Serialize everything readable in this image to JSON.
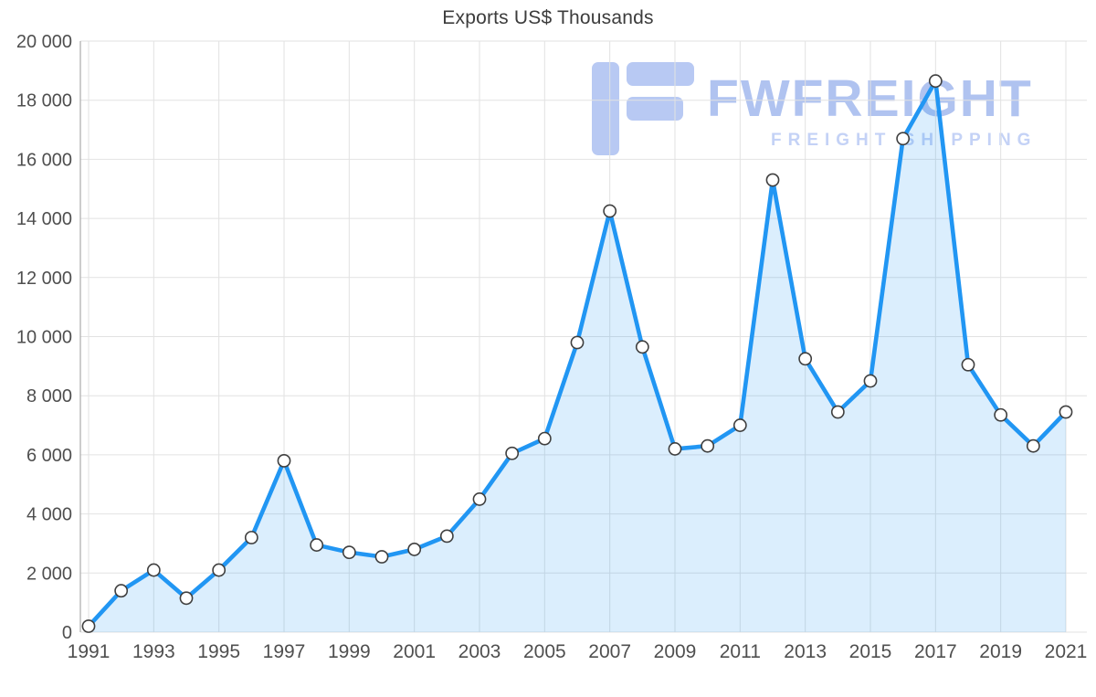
{
  "watermark": {
    "brand": "FWFREIGHT",
    "tagline": "FREIGHT SHIPPING",
    "brand_color": "#b0c3f0",
    "logo_color": "#b8c9f3"
  },
  "chart_data": {
    "type": "area",
    "title": "Exports US$ Thousands",
    "xlabel": "",
    "ylabel": "",
    "ylim": [
      0,
      20000
    ],
    "grid": true,
    "legend": "none",
    "x": [
      1991,
      1992,
      1993,
      1994,
      1995,
      1996,
      1997,
      1998,
      1999,
      2000,
      2001,
      2002,
      2003,
      2004,
      2005,
      2006,
      2007,
      2008,
      2009,
      2010,
      2011,
      2012,
      2013,
      2014,
      2015,
      2016,
      2017,
      2018,
      2019,
      2020,
      2021
    ],
    "series": [
      {
        "name": "Exports US$ Thousands",
        "values": [
          200,
          1400,
          2100,
          1150,
          2100,
          3200,
          5800,
          2950,
          2700,
          2550,
          2800,
          3250,
          4500,
          6050,
          6550,
          9800,
          14250,
          9650,
          6200,
          6300,
          7000,
          15300,
          9250,
          7450,
          8500,
          16700,
          18650,
          9050,
          7350,
          6300,
          7450
        ]
      }
    ],
    "y_ticks": [
      0,
      2000,
      4000,
      6000,
      8000,
      10000,
      12000,
      14000,
      16000,
      18000,
      20000
    ],
    "y_tick_labels": [
      "0",
      "2 000",
      "4 000",
      "6 000",
      "8 000",
      "10 000",
      "12 000",
      "14 000",
      "16 000",
      "18 000",
      "20 000"
    ],
    "x_tick_years": [
      1991,
      1993,
      1995,
      1997,
      1999,
      2001,
      2003,
      2005,
      2007,
      2009,
      2011,
      2013,
      2015,
      2017,
      2019,
      2021
    ],
    "x_tick_labels": [
      "1991",
      "1993",
      "1995",
      "1997",
      "1999",
      "2001",
      "2003",
      "2005",
      "2007",
      "2009",
      "2011",
      "2013",
      "2015",
      "2017",
      "2019",
      "2021"
    ],
    "colors": {
      "line": "#2196f3",
      "area_fill": "#2196f3",
      "area_opacity": 0.16,
      "marker_fill": "#ffffff",
      "marker_stroke": "#3f3f3f",
      "gridline": "#e2e2e2",
      "axis_line": "#ababab",
      "tick_text": "#4f4f4f",
      "title_text": "#3c3c3c"
    }
  }
}
